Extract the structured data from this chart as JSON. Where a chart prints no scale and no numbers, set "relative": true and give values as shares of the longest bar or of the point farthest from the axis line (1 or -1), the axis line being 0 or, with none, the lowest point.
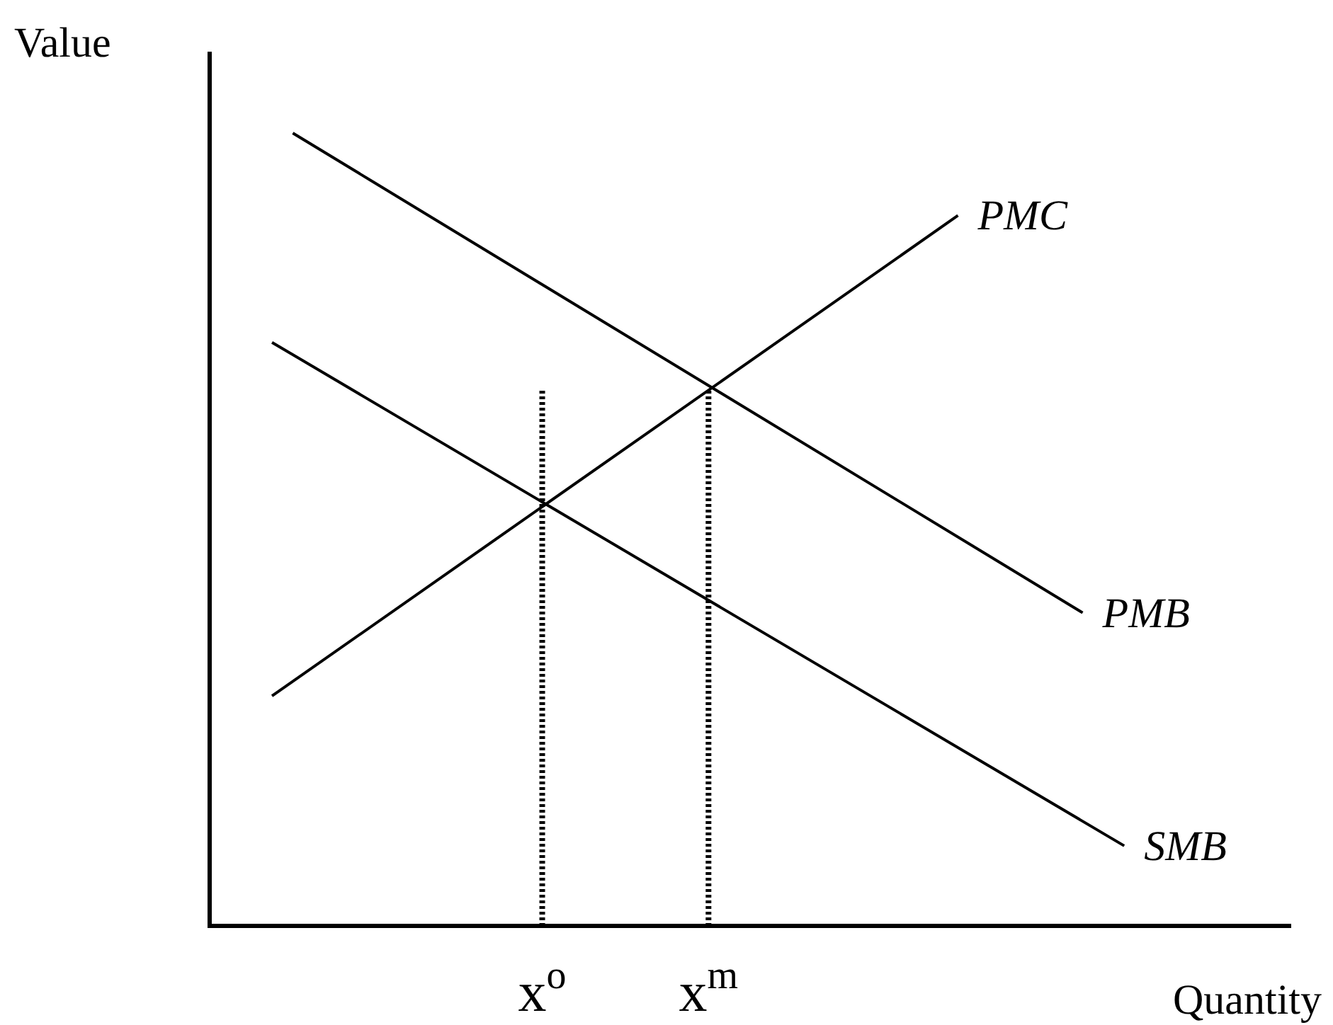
{
  "chart_data": {
    "type": "line",
    "relative": true,
    "xlabel": "Quantity",
    "ylabel": "Value",
    "categories": [
      null,
      null,
      null,
      null,
      null,
      null,
      null,
      null,
      null,
      null,
      null,
      null,
      null,
      null,
      null,
      null,
      "x$^{o}$",
      null,
      null,
      null,
      null,
      null,
      null,
      null,
      "x$^{m}$",
      null,
      null,
      null,
      null,
      null,
      null,
      null,
      null,
      null,
      null,
      null,
      null,
      null,
      null,
      null,
      null,
      null,
      null,
      null,
      null,
      null,
      null,
      null,
      null,
      null,
      null,
      null,
      null
    ],
    "series": [
      {
        "name": "PMC",
        "color": "#000000",
        "values": [
          null,
          null,
          null,
          0.29,
          null,
          null,
          null,
          null,
          null,
          null,
          null,
          null,
          null,
          null,
          null,
          null,
          null,
          null,
          null,
          null,
          null,
          null,
          null,
          null,
          null,
          null,
          null,
          null,
          null,
          null,
          null,
          null,
          null,
          null,
          null,
          null,
          0.896,
          null,
          null,
          null,
          null,
          null,
          null,
          null,
          null,
          null,
          null,
          null,
          null,
          null,
          null,
          null,
          null
        ]
      },
      {
        "name": "PMB",
        "color": "#000000",
        "values": [
          null,
          null,
          null,
          null,
          1,
          null,
          null,
          null,
          null,
          null,
          null,
          null,
          null,
          null,
          null,
          null,
          null,
          null,
          null,
          null,
          null,
          null,
          null,
          null,
          null,
          null,
          null,
          null,
          null,
          null,
          null,
          null,
          null,
          null,
          null,
          null,
          null,
          null,
          null,
          null,
          null,
          null,
          0.395,
          null,
          null,
          null,
          null,
          null,
          null,
          null,
          null,
          null,
          null
        ]
      },
      {
        "name": "SMB",
        "color": "#000000",
        "values": [
          null,
          null,
          null,
          0.736,
          null,
          null,
          null,
          null,
          null,
          null,
          null,
          null,
          null,
          null,
          null,
          null,
          null,
          null,
          null,
          null,
          null,
          null,
          null,
          null,
          null,
          null,
          null,
          null,
          null,
          null,
          null,
          null,
          null,
          null,
          null,
          null,
          null,
          null,
          null,
          null,
          null,
          null,
          null,
          null,
          0.101,
          null,
          null,
          null,
          null,
          null,
          null,
          null,
          null
        ]
      }
    ],
    "ref_lines": [
      {
        "axis": "x",
        "value": "x$^{o}$",
        "line_style": "dotted",
        "color": "#000000"
      },
      {
        "axis": "x",
        "value": "x$^{m}$",
        "line_style": "dotted",
        "color": "#000000"
      }
    ],
    "grid": false,
    "legend": false,
    "marker": "none",
    "line_style": "solid"
  }
}
